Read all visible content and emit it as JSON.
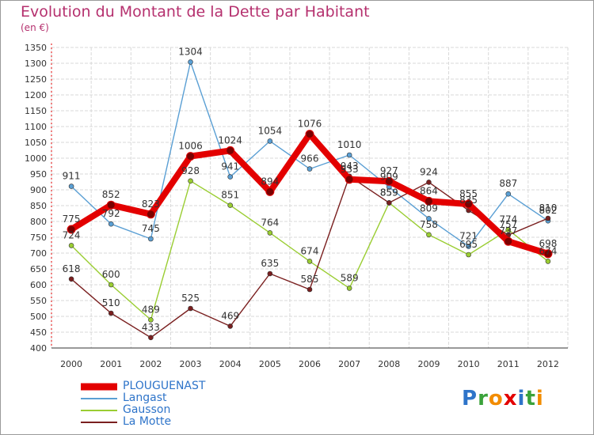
{
  "header": {
    "title": "Evolution du Montant de la Dette par Habitant",
    "unit": "(en €)"
  },
  "colors": {
    "title": "#b5306e",
    "legend_text": "#2e74c9",
    "grid": "#d9d9d9",
    "axis_text": "#333333"
  },
  "chart_data": {
    "type": "line",
    "title": "Evolution du Montant de la Dette par Habitant",
    "subtitle": "(en €)",
    "xlabel": "",
    "ylabel": "",
    "x": [
      "2000",
      "2001",
      "2002",
      "2003",
      "2004",
      "2005",
      "2006",
      "2007",
      "2008",
      "2009",
      "2010",
      "2011",
      "2012"
    ],
    "ylim": [
      400,
      1350
    ],
    "yticks": [
      400,
      450,
      500,
      550,
      600,
      650,
      700,
      750,
      800,
      850,
      900,
      950,
      1000,
      1050,
      1100,
      1150,
      1200,
      1250,
      1300,
      1350
    ],
    "grid": true,
    "legend_position": "bottom-left",
    "series": [
      {
        "name": "PLOUGUENAST",
        "color": "#e30000",
        "values": [
          775,
          852,
          823,
          1006,
          1024,
          894,
          1076,
          933,
          927,
          864,
          855,
          737,
          698
        ]
      },
      {
        "name": "Langast",
        "color": "#5a9fd4",
        "values": [
          911,
          792,
          745,
          1304,
          941,
          1054,
          966,
          1010,
          909,
          809,
          721,
          887,
          802
        ]
      },
      {
        "name": "Gausson",
        "color": "#9acd32",
        "values": [
          724,
          600,
          489,
          928,
          851,
          764,
          674,
          589,
          859,
          758,
          695,
          774,
          674
        ]
      },
      {
        "name": "La Motte",
        "color": "#7a1f1f",
        "values": [
          618,
          510,
          433,
          525,
          469,
          635,
          585,
          943,
          859,
          924,
          835,
          757,
          810
        ]
      }
    ],
    "labels": [
      [
        775,
        852,
        823,
        1006,
        1024,
        894,
        1076,
        933,
        927,
        864,
        855,
        737,
        698
      ],
      [
        911,
        792,
        745,
        1304,
        941,
        1054,
        966,
        1010,
        909,
        809,
        721,
        887,
        802
      ],
      [
        724,
        600,
        489,
        928,
        851,
        764,
        674,
        589,
        859,
        758,
        695,
        774,
        674
      ],
      [
        618,
        510,
        433,
        525,
        469,
        635,
        585,
        943,
        859,
        924,
        835,
        757,
        810
      ]
    ]
  },
  "logo": {
    "letters": [
      "P",
      "r",
      "o",
      "x",
      "i",
      "t",
      "i"
    ],
    "colors": [
      "#2e74c9",
      "#3aa23a",
      "#f28c00",
      "#e30000",
      "#2e74c9",
      "#3aa23a",
      "#f28c00"
    ]
  }
}
